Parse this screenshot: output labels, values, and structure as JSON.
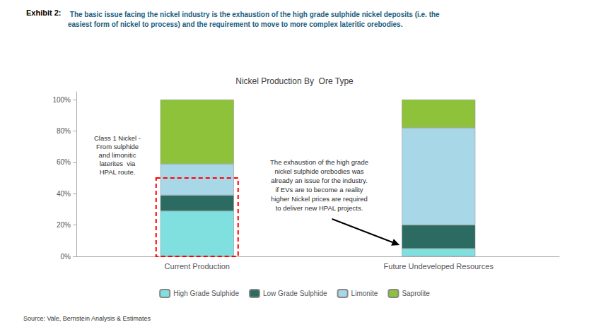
{
  "chart_data": {
    "type": "bar",
    "title": "Nickel Production By  Ore Type",
    "title_color": "#3D3D3D",
    "categories": [
      "Current Production",
      "Future Undeveloped Resources"
    ],
    "series": [
      {
        "name": "High Grade Sulphide",
        "color": "#80DFDF",
        "values": [
          0.29,
          0.05
        ]
      },
      {
        "name": "Low Grade Sulphide",
        "color": "#2B6B62",
        "values": [
          0.1,
          0.15
        ]
      },
      {
        "name": "Limonite",
        "color": "#A8D8E8",
        "values": [
          0.2,
          0.62
        ]
      },
      {
        "name": "Saprolite",
        "color": "#8DC23A",
        "values": [
          0.41,
          0.18
        ]
      }
    ],
    "stacked": true,
    "ylim": [
      0,
      1.05
    ],
    "yticks": [
      {
        "value": 0,
        "label": "0%"
      },
      {
        "value": 0.2,
        "label": "20%"
      },
      {
        "value": 0.4,
        "label": "40%"
      },
      {
        "value": 0.6,
        "label": "60%"
      },
      {
        "value": 0.8,
        "label": "80%"
      },
      {
        "value": 1.0,
        "label": "100%"
      }
    ],
    "grid": false,
    "legend": "bottom",
    "highlight": {
      "category": "Current Production",
      "ylim": [
        0.0,
        0.5
      ],
      "color": "red",
      "line_style": "dashed"
    },
    "annotations": [
      {
        "text": "Exhibit 2:",
        "color": "#000000"
      },
      {
        "text": " The basic issue facing the nickel industry is the exhaustion of the high grade sulphide nickel deposits (i.e. the\neasiest form of nickel to process) and the requirement to move to more complex lateritic orebodies.",
        "color": "#1A6080"
      },
      {
        "text": "Class 1 Nickel -\nFrom sulphide\nand limonitic\nlaterites  via\nHPAL route.",
        "color": "#2B2B2B"
      },
      {
        "text": "The exhaustion of the high grade\nnickel sulphide orebodies was\nalready an issue for the industry.\nif EVs are to become a reality\nhigher Nickel prices are required\nto deliver new HPAL projects.",
        "color": "#2B2B2B"
      },
      {
        "text": "Source: Vale, Bernstein Analysis & Estimates",
        "color": "#333333"
      }
    ]
  }
}
